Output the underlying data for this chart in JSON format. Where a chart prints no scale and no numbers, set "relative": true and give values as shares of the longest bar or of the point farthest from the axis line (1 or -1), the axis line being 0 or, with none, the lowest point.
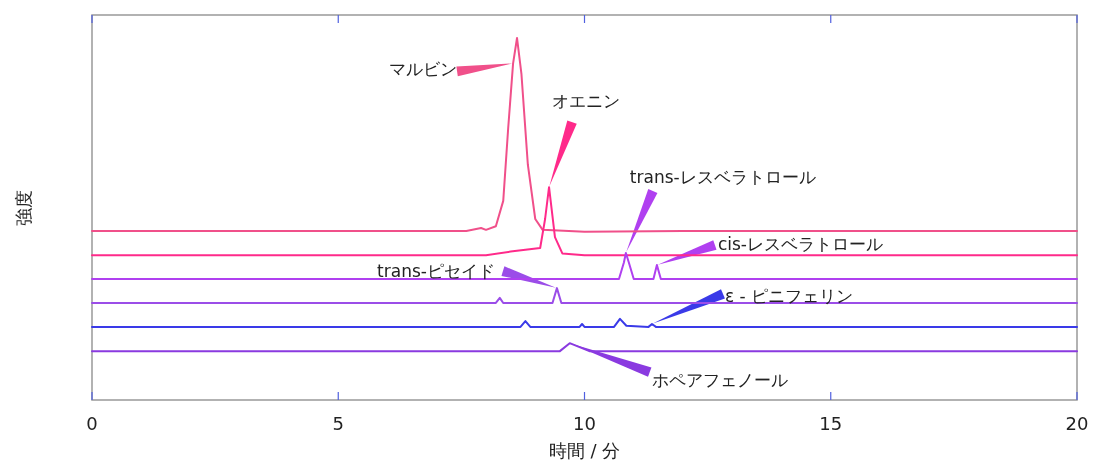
{
  "chart_data": {
    "type": "line",
    "relative": true,
    "xlabel": "時間 / 分",
    "ylabel": "強度",
    "xlim": [
      0,
      20
    ],
    "xticks": [
      0,
      5,
      10,
      15,
      20
    ],
    "grid": false,
    "legend": false,
    "marker": "none",
    "line_style": "solid",
    "series": [
      {
        "color": "#f0508a",
        "x": [
          0,
          7.6,
          7.9,
          8.0,
          8.2,
          8.35,
          8.45,
          8.55,
          8.63,
          8.72,
          8.85,
          9.0,
          9.15,
          10,
          12,
          20
        ],
        "values": [
          0.467,
          0.467,
          0.475,
          0.47,
          0.48,
          0.55,
          0.75,
          0.93,
          1.0,
          0.9,
          0.65,
          0.5,
          0.47,
          0.465,
          0.467,
          0.467
        ]
      },
      {
        "color": "#ff2a8a",
        "x": [
          0,
          8.0,
          8.5,
          9.1,
          9.2,
          9.28,
          9.4,
          9.55,
          10,
          20
        ],
        "values": [
          0.4,
          0.4,
          0.41,
          0.42,
          0.5,
          0.588,
          0.45,
          0.405,
          0.4,
          0.4
        ]
      },
      {
        "color": "#b040f0",
        "x": [
          0,
          10.7,
          10.8,
          10.84,
          10.9,
          11.0,
          11.4,
          11.47,
          11.55,
          20
        ],
        "values": [
          0.334,
          0.334,
          0.38,
          0.406,
          0.38,
          0.334,
          0.334,
          0.373,
          0.334,
          0.334
        ]
      },
      {
        "color": "#9b4de8",
        "x": [
          0,
          8.2,
          8.28,
          8.35,
          9.35,
          9.44,
          9.53,
          20
        ],
        "values": [
          0.268,
          0.268,
          0.282,
          0.268,
          0.268,
          0.309,
          0.268,
          0.268
        ]
      },
      {
        "color": "#3a3ae8",
        "x": [
          0,
          8.7,
          8.8,
          8.9,
          9.9,
          9.95,
          10.0,
          10.6,
          10.72,
          10.85,
          11.3,
          11.37,
          11.45,
          20
        ],
        "values": [
          0.202,
          0.202,
          0.218,
          0.202,
          0.202,
          0.21,
          0.202,
          0.202,
          0.224,
          0.205,
          0.202,
          0.21,
          0.202,
          0.202
        ]
      },
      {
        "color": "#8a3ae0",
        "x": [
          0,
          9.5,
          9.7,
          10.1,
          20
        ],
        "values": [
          0.135,
          0.135,
          0.157,
          0.135,
          0.135
        ]
      }
    ],
    "annotations": [
      {
        "text": "マルビン",
        "x": 8.55,
        "y": 0.93
      },
      {
        "text": "オエニン",
        "x": 9.28,
        "y": 0.588
      },
      {
        "text": "trans-レスベラトロール",
        "x": 10.84,
        "y": 0.406
      },
      {
        "text": "cis-レスベラトロール",
        "x": 11.47,
        "y": 0.373
      },
      {
        "text": "trans-ピセイド",
        "x": 9.44,
        "y": 0.309
      },
      {
        "text": "ε - ピニフェリン",
        "x": 11.37,
        "y": 0.21
      },
      {
        "text": "ホペアフェノール",
        "x": 9.7,
        "y": 0.157
      }
    ]
  }
}
